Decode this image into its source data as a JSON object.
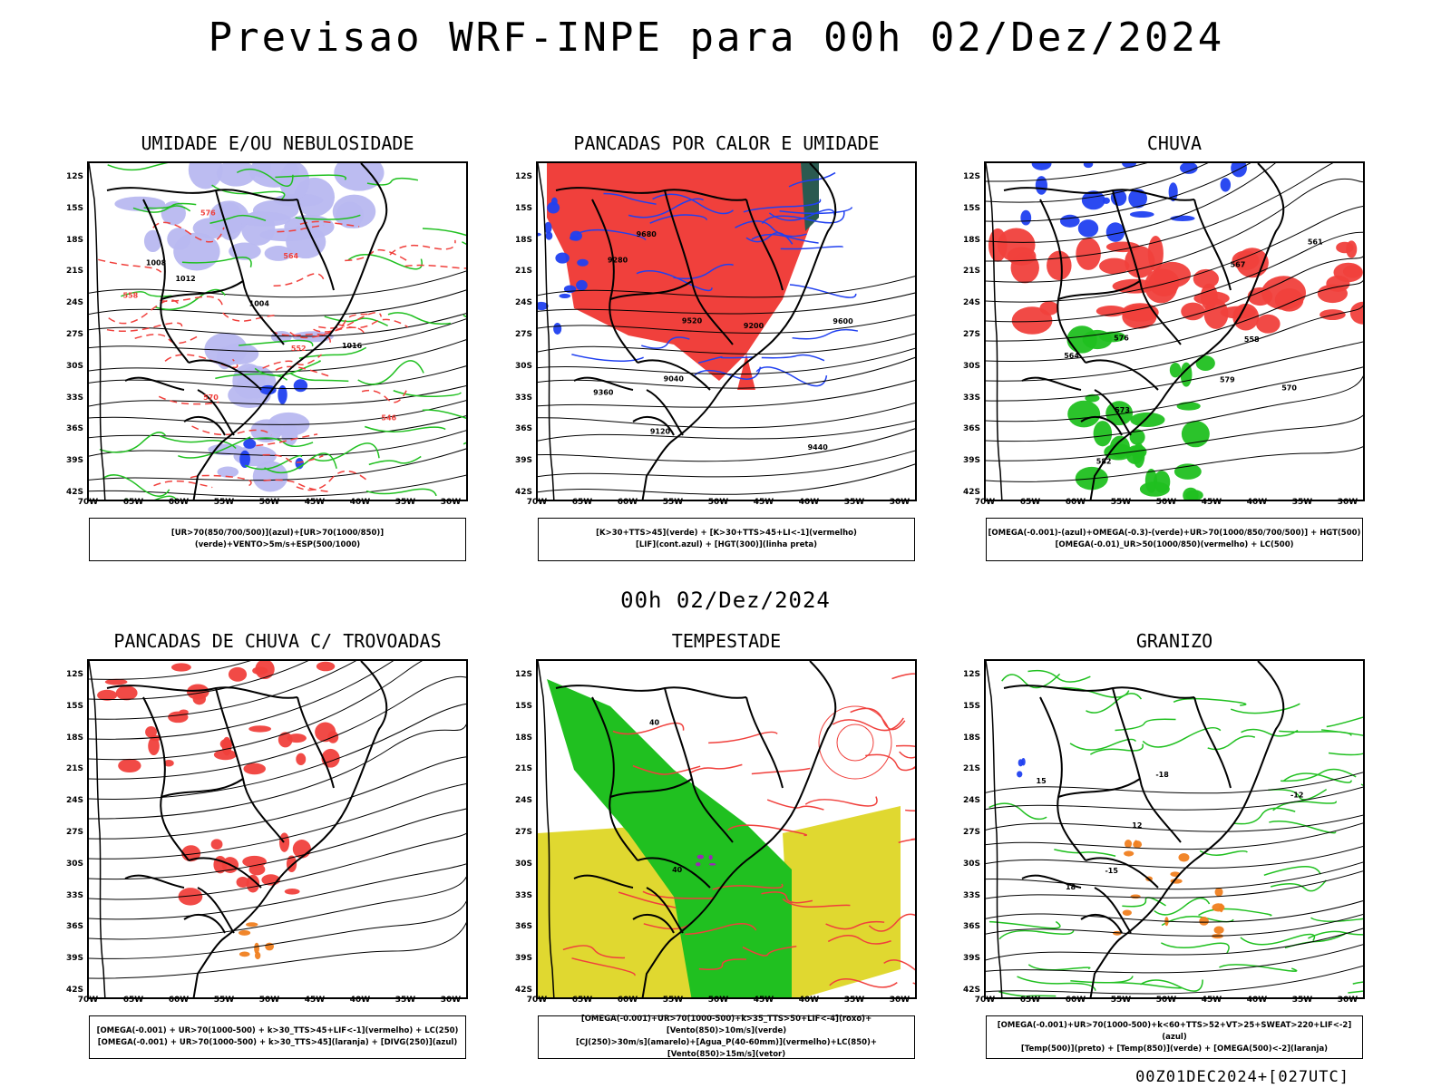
{
  "title": "Previsao WRF-INPE  para 00h 02/Dez/2024",
  "mid_title": "00h 02/Dez/2024",
  "footer": "00Z01DEC2024+[027UTC]",
  "colors": {
    "red": "#f0403c",
    "blue": "#2040f0",
    "green": "#20c020",
    "lavender": "#b8b8f0",
    "yellow": "#e0d830",
    "orange": "#f08020",
    "darkgreen": "#2a5a50",
    "purple": "#a020c0"
  },
  "lat_labels": [
    "12S",
    "15S",
    "18S",
    "21S",
    "24S",
    "27S",
    "30S",
    "33S",
    "36S",
    "39S",
    "42S"
  ],
  "lon_labels": [
    "70W",
    "65W",
    "60W",
    "55W",
    "50W",
    "45W",
    "40W",
    "35W",
    "30W"
  ],
  "panels": [
    {
      "title": "UMIDADE E/OU NEBULOSIDADE",
      "legend": [
        "[UR>70(850/700/500)](azul)+[UR>70(1000/850)](verde)+VENTO>5m/s+ESP(500/1000)"
      ],
      "contour_labels": [
        "1012",
        "1008",
        "1004",
        "576",
        "570",
        "564",
        "558",
        "552",
        "546",
        "1016"
      ]
    },
    {
      "title": "PANCADAS POR CALOR E UMIDADE",
      "legend": [
        "[K>30+TTS>45](verde) + [K>30+TTS>45+LI<-1](vermelho)",
        "[LIF](cont.azul) + [HGT(300)](linha preta)"
      ],
      "contour_labels": [
        "9680",
        "9600",
        "9520",
        "9440",
        "9360",
        "9280",
        "9200",
        "9120",
        "9040"
      ]
    },
    {
      "title": "CHUVA",
      "legend": [
        "[OMEGA(-0.001)-(azul)+OMEGA(-0.3)-(verde)+UR>70(1000/850/700/500)] + HGT(500)",
        "[OMEGA(-0.01)_UR>50(1000/850)(vermelho) + LC(500)"
      ],
      "contour_labels": [
        "582",
        "579",
        "576",
        "573",
        "570",
        "567",
        "564",
        "561",
        "558"
      ]
    },
    {
      "title": "PANCADAS DE CHUVA C/ TROVOADAS",
      "legend": [
        "[OMEGA(-0.001) + UR>70(1000-500) + k>30_TTS>45+LIF<-1](vermelho) + LC(250)",
        "[OMEGA(-0.001) + UR>70(1000-500) + k>30_TTS>45](laranja) + [DIVG(250)](azul)"
      ],
      "contour_labels": []
    },
    {
      "title": "TEMPESTADE",
      "legend": [
        "[OMEGA(-0.001)+UR>70(1000-500)+k>35_TTS>50+LIF<-4](roxo)+[Vento(850)>10m/s](verde)",
        "[CJ(250)>30m/s](amarelo)+[Agua_P(40-60mm)](vermelho)+LC(850)+[Vento(850)>15m/s](vetor)"
      ],
      "contour_labels": [
        "40",
        "40"
      ]
    },
    {
      "title": "GRANIZO",
      "legend": [
        "[OMEGA(-0.001)+UR>70(1000-500)+k<60+TTS>52+VT>25+SWEAT>220+LIF<-2](azul)",
        "[Temp(500)](preto) + [Temp(850)](verde) + [OMEGA(500)<-2](laranja)"
      ],
      "contour_labels": [
        "12",
        "15",
        "18",
        "-12",
        "-15",
        "-18"
      ]
    }
  ]
}
